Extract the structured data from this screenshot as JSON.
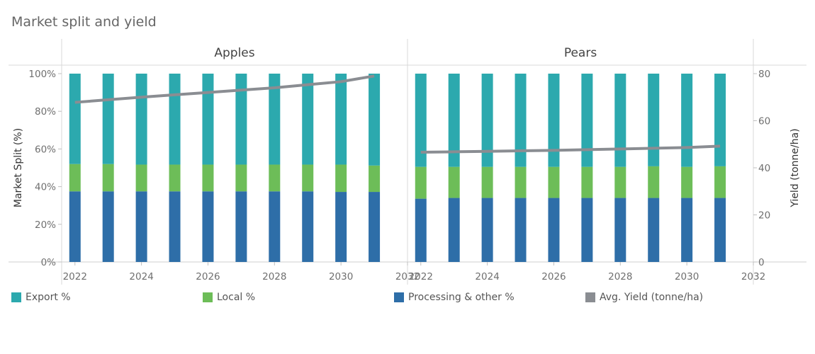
{
  "title": "Market split and yield",
  "colors": {
    "export": "#2ca9ae",
    "local": "#6dbd58",
    "processing": "#2e6ea8",
    "yield": "#8a8d92"
  },
  "chart_data": {
    "type": "bar",
    "stacked": true,
    "title": "Market split and yield",
    "panels": [
      "Apples",
      "Pears"
    ],
    "x": [
      2022,
      2023,
      2024,
      2025,
      2026,
      2027,
      2028,
      2029,
      2030,
      2031
    ],
    "x_ticks": [
      "2022",
      "2024",
      "2026",
      "2028",
      "2030",
      "2032"
    ],
    "xlim": [
      2021.6,
      2032
    ],
    "ylabel": "Market Split (%)",
    "y2label": "Yield (tonne/ha)",
    "ylim": [
      0,
      100
    ],
    "y2lim": [
      0,
      80
    ],
    "y_ticks": [
      "0%",
      "20%",
      "40%",
      "60%",
      "80%",
      "100%"
    ],
    "y2_ticks": [
      "0",
      "20",
      "40",
      "60",
      "80"
    ],
    "series": [
      {
        "name": "Processing & other %",
        "key": "processing",
        "kind": "bar",
        "panels": {
          "Apples": [
            37.5,
            37.5,
            37.5,
            37.5,
            37.5,
            37.5,
            37.5,
            37.5,
            37.2,
            37.2
          ],
          "Pears": [
            33.6,
            34.0,
            34.0,
            34.0,
            34.0,
            34.0,
            34.0,
            34.0,
            34.0,
            34.0
          ]
        }
      },
      {
        "name": "Local %",
        "key": "local",
        "kind": "bar",
        "panels": {
          "Apples": [
            14.5,
            14.5,
            14.2,
            14.2,
            14.2,
            14.2,
            14.2,
            14.2,
            14.5,
            14.0
          ],
          "Pears": [
            16.9,
            16.5,
            16.5,
            16.5,
            16.5,
            16.5,
            16.5,
            16.8,
            16.5,
            16.8
          ]
        }
      },
      {
        "name": "Export %",
        "key": "export",
        "kind": "bar",
        "panels": {
          "Apples": [
            48.0,
            48.0,
            48.3,
            48.3,
            48.3,
            48.3,
            48.3,
            48.3,
            48.3,
            48.8
          ],
          "Pears": [
            49.5,
            49.5,
            49.5,
            49.5,
            49.5,
            49.5,
            49.5,
            49.2,
            49.5,
            49.2
          ]
        }
      },
      {
        "name": "Avg. Yield (tonne/ha)",
        "key": "yield",
        "kind": "line",
        "axis": "y2",
        "panels": {
          "Apples": [
            67.8,
            68.9,
            70.0,
            71.0,
            72.0,
            73.0,
            74.0,
            75.3,
            76.6,
            79.0
          ],
          "Pears": [
            46.6,
            46.8,
            47.0,
            47.2,
            47.4,
            47.7,
            48.0,
            48.3,
            48.6,
            49.2
          ]
        }
      }
    ],
    "legend": [
      {
        "label": "Export %",
        "key": "export",
        "shape": "square"
      },
      {
        "label": "Local %",
        "key": "local",
        "shape": "square"
      },
      {
        "label": "Processing & other %",
        "key": "processing",
        "shape": "square"
      },
      {
        "label": "Avg. Yield (tonne/ha)",
        "key": "yield",
        "shape": "square"
      }
    ],
    "legend_position": "bottom"
  }
}
